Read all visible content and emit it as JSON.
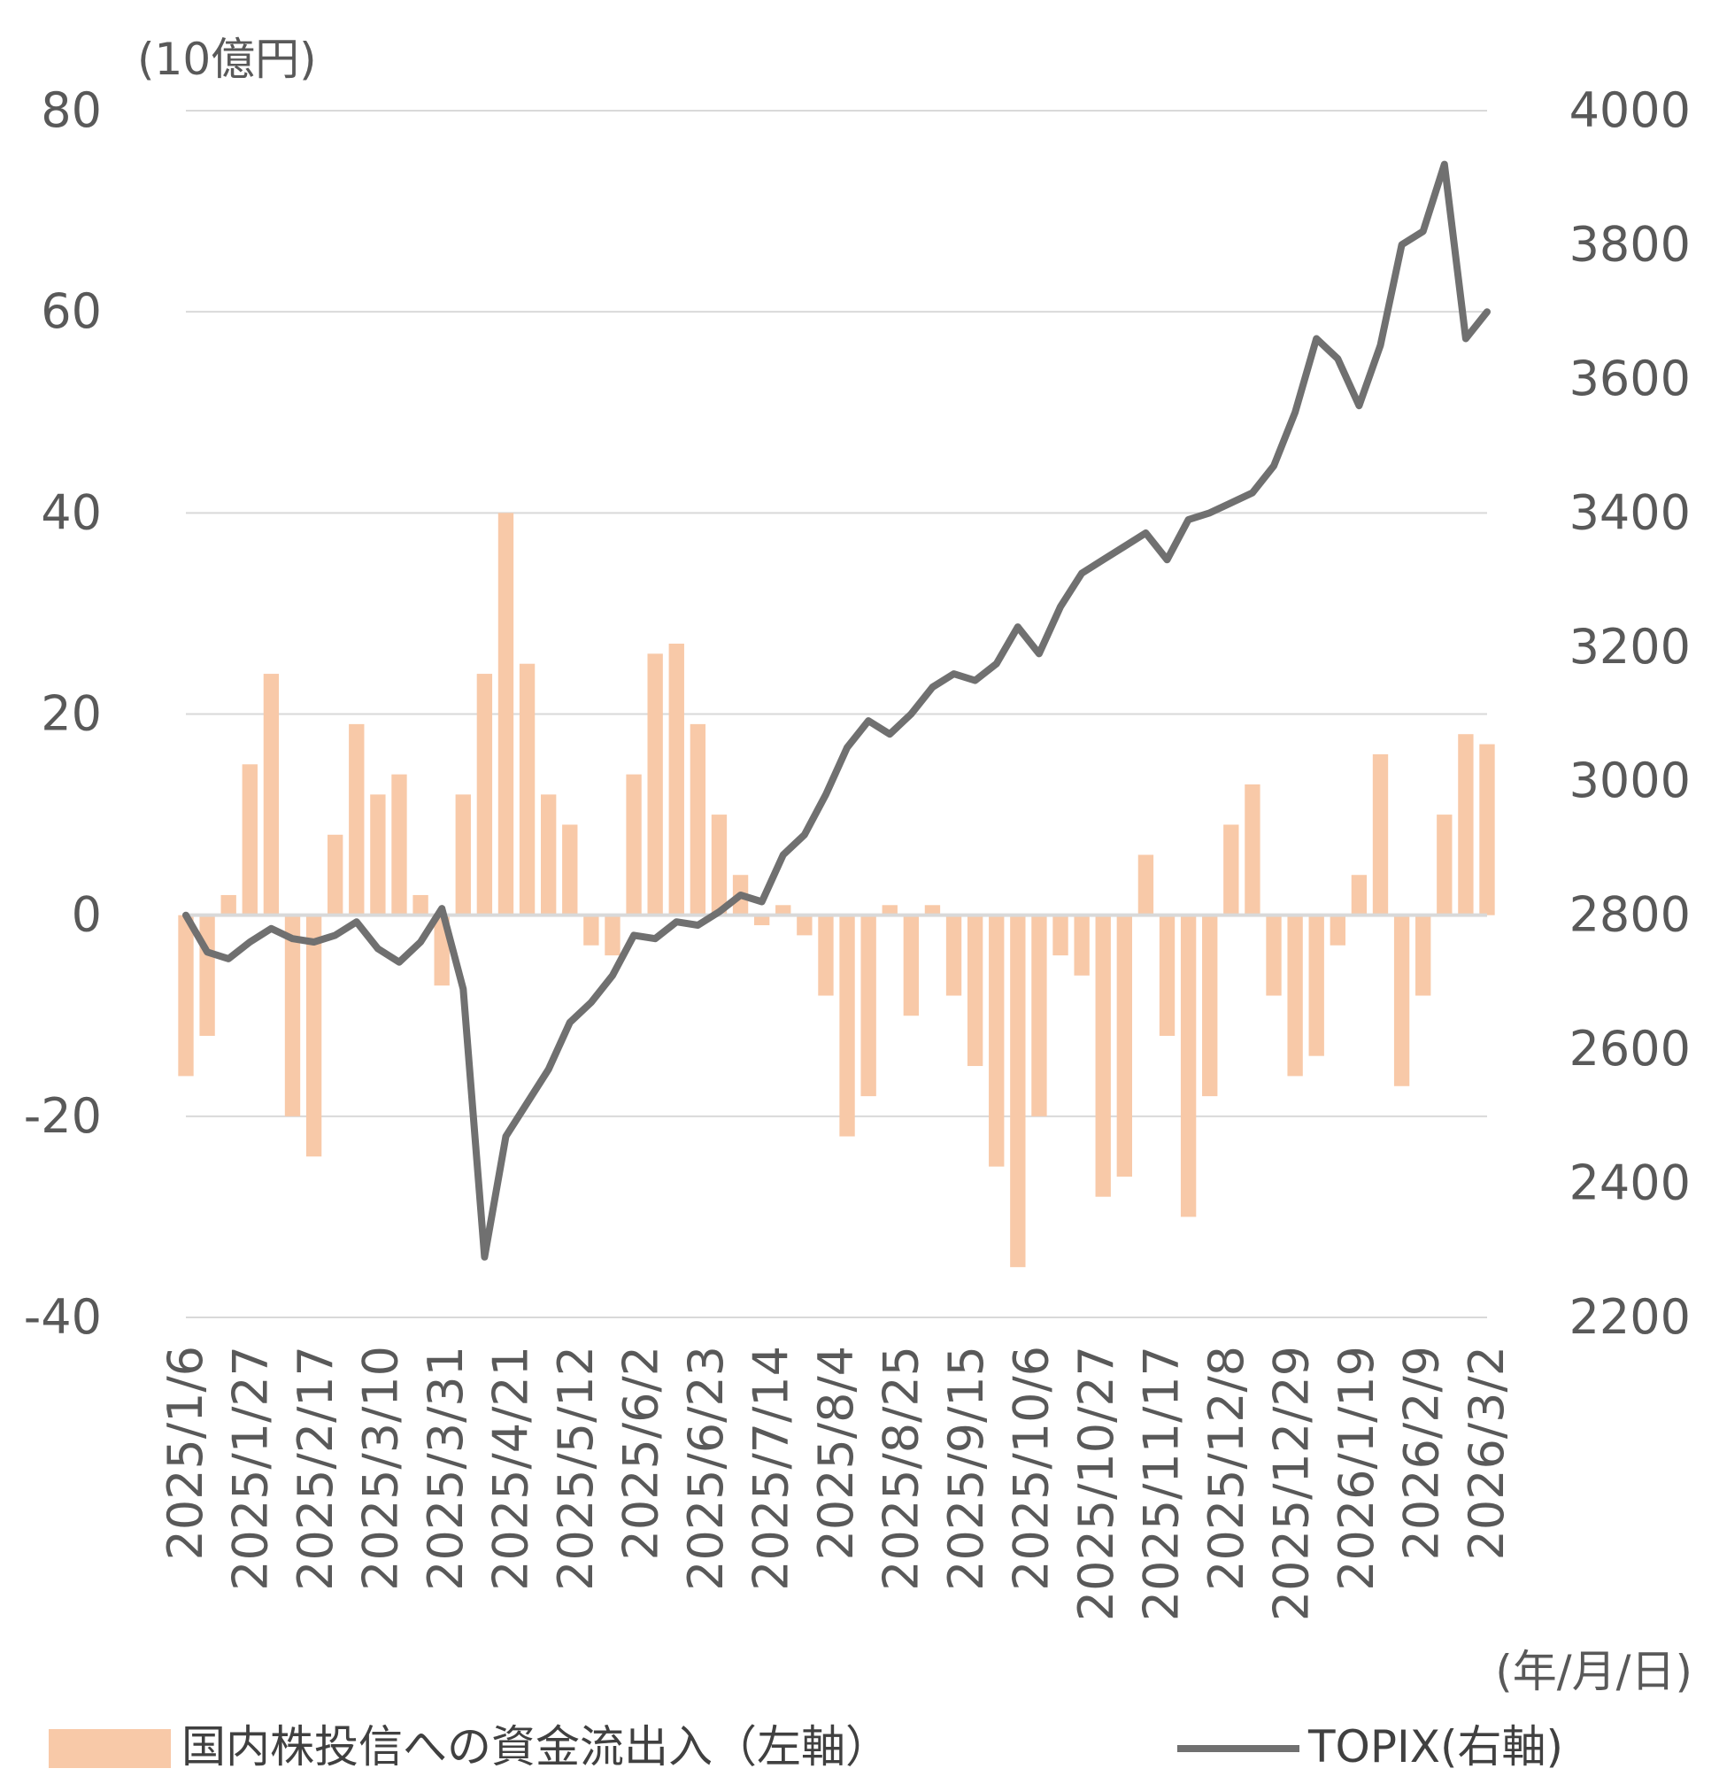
{
  "chart_data": {
    "type": "bar+line",
    "title": "",
    "left_axis": {
      "unit_label": "(10億円)",
      "ylim": [
        -40,
        80
      ],
      "ticks": [
        80,
        60,
        40,
        20,
        0,
        -20,
        -40
      ]
    },
    "right_axis": {
      "ylim": [
        2200,
        4000
      ],
      "ticks": [
        4000,
        3800,
        3600,
        3400,
        3200,
        3000,
        2800,
        2600,
        2400,
        2200
      ]
    },
    "x_axis": {
      "unit_label": "(年/月/日)",
      "date_range": [
        "2025-01-06",
        "2026-03-09"
      ],
      "tick_labels": [
        "2025/1/6",
        "2025/1/27",
        "2025/2/17",
        "2025/3/10",
        "2025/3/31",
        "2025/4/21",
        "2025/5/12",
        "2025/6/2",
        "2025/6/23",
        "2025/7/14",
        "2025/8/4",
        "2025/8/25",
        "2025/9/15",
        "2025/10/6",
        "2025/10/27",
        "2025/11/17",
        "2025/12/8",
        "2025/12/29",
        "2026/1/19",
        "2026/2/9",
        "2026/3/2"
      ]
    },
    "grid": true,
    "legend_placement": "bottom",
    "series": [
      {
        "name": "国内株投信への資金流出入（左軸）",
        "kind": "bar",
        "axis": "left",
        "color": "#f8c9a8",
        "points": [
          [
            "2025-01-06",
            -16
          ],
          [
            "2025-01-13",
            -12
          ],
          [
            "2025-01-20",
            2
          ],
          [
            "2025-01-27",
            15
          ],
          [
            "2025-02-03",
            24
          ],
          [
            "2025-02-10",
            -20
          ],
          [
            "2025-02-17",
            -24
          ],
          [
            "2025-02-24",
            8
          ],
          [
            "2025-03-03",
            19
          ],
          [
            "2025-03-10",
            12
          ],
          [
            "2025-03-17",
            14
          ],
          [
            "2025-03-24",
            2
          ],
          [
            "2025-03-31",
            -7
          ],
          [
            "2025-04-07",
            12
          ],
          [
            "2025-04-14",
            24
          ],
          [
            "2025-04-21",
            40
          ],
          [
            "2025-04-28",
            25
          ],
          [
            "2025-05-05",
            12
          ],
          [
            "2025-05-12",
            9
          ],
          [
            "2025-05-19",
            -3
          ],
          [
            "2025-05-26",
            -4
          ],
          [
            "2025-06-02",
            14
          ],
          [
            "2025-06-09",
            26
          ],
          [
            "2025-06-16",
            27
          ],
          [
            "2025-06-23",
            19
          ],
          [
            "2025-06-30",
            10
          ],
          [
            "2025-07-07",
            4
          ],
          [
            "2025-07-14",
            -1
          ],
          [
            "2025-07-21",
            1
          ],
          [
            "2025-07-28",
            -2
          ],
          [
            "2025-08-04",
            -8
          ],
          [
            "2025-08-11",
            -22
          ],
          [
            "2025-08-18",
            -18
          ],
          [
            "2025-08-25",
            1
          ],
          [
            "2025-09-01",
            -10
          ],
          [
            "2025-09-08",
            1
          ],
          [
            "2025-09-15",
            -8
          ],
          [
            "2025-09-22",
            -15
          ],
          [
            "2025-09-29",
            -25
          ],
          [
            "2025-10-06",
            -35
          ],
          [
            "2025-10-13",
            -20
          ],
          [
            "2025-10-20",
            -4
          ],
          [
            "2025-10-27",
            -6
          ],
          [
            "2025-11-03",
            -28
          ],
          [
            "2025-11-10",
            -26
          ],
          [
            "2025-11-17",
            6
          ],
          [
            "2025-11-24",
            -12
          ],
          [
            "2025-12-01",
            -30
          ],
          [
            "2025-12-08",
            -18
          ],
          [
            "2025-12-15",
            9
          ],
          [
            "2025-12-22",
            13
          ],
          [
            "2025-12-29",
            -8
          ],
          [
            "2026-01-05",
            -16
          ],
          [
            "2026-01-12",
            -14
          ],
          [
            "2026-01-19",
            -3
          ],
          [
            "2026-01-26",
            4
          ],
          [
            "2026-02-02",
            16
          ],
          [
            "2026-02-09",
            -17
          ],
          [
            "2026-02-16",
            -8
          ],
          [
            "2026-02-23",
            10
          ],
          [
            "2026-03-02",
            18
          ],
          [
            "2026-03-09",
            17
          ]
        ]
      },
      {
        "name": "TOPIX(右軸)",
        "kind": "line",
        "axis": "right",
        "color": "#707070",
        "points": [
          [
            "2025-01-06",
            2800
          ],
          [
            "2025-01-13",
            2745
          ],
          [
            "2025-01-20",
            2735
          ],
          [
            "2025-01-27",
            2760
          ],
          [
            "2025-02-03",
            2780
          ],
          [
            "2025-02-10",
            2765
          ],
          [
            "2025-02-17",
            2760
          ],
          [
            "2025-02-24",
            2770
          ],
          [
            "2025-03-03",
            2790
          ],
          [
            "2025-03-10",
            2750
          ],
          [
            "2025-03-17",
            2730
          ],
          [
            "2025-03-24",
            2760
          ],
          [
            "2025-03-31",
            2810
          ],
          [
            "2025-04-07",
            2690
          ],
          [
            "2025-04-14",
            2290
          ],
          [
            "2025-04-21",
            2470
          ],
          [
            "2025-04-28",
            2520
          ],
          [
            "2025-05-05",
            2570
          ],
          [
            "2025-05-12",
            2640
          ],
          [
            "2025-05-19",
            2670
          ],
          [
            "2025-05-26",
            2710
          ],
          [
            "2025-06-02",
            2770
          ],
          [
            "2025-06-09",
            2765
          ],
          [
            "2025-06-16",
            2790
          ],
          [
            "2025-06-23",
            2785
          ],
          [
            "2025-06-30",
            2805
          ],
          [
            "2025-07-07",
            2830
          ],
          [
            "2025-07-14",
            2820
          ],
          [
            "2025-07-21",
            2890
          ],
          [
            "2025-07-28",
            2920
          ],
          [
            "2025-08-04",
            2980
          ],
          [
            "2025-08-11",
            3050
          ],
          [
            "2025-08-18",
            3090
          ],
          [
            "2025-08-25",
            3070
          ],
          [
            "2025-09-01",
            3100
          ],
          [
            "2025-09-08",
            3140
          ],
          [
            "2025-09-15",
            3160
          ],
          [
            "2025-09-22",
            3150
          ],
          [
            "2025-09-29",
            3175
          ],
          [
            "2025-10-06",
            3230
          ],
          [
            "2025-10-13",
            3190
          ],
          [
            "2025-10-20",
            3260
          ],
          [
            "2025-10-27",
            3310
          ],
          [
            "2025-11-03",
            3330
          ],
          [
            "2025-11-10",
            3350
          ],
          [
            "2025-11-17",
            3370
          ],
          [
            "2025-11-24",
            3330
          ],
          [
            "2025-12-01",
            3390
          ],
          [
            "2025-12-08",
            3400
          ],
          [
            "2025-12-15",
            3415
          ],
          [
            "2025-12-22",
            3430
          ],
          [
            "2025-12-29",
            3470
          ],
          [
            "2026-01-05",
            3550
          ],
          [
            "2026-01-12",
            3660
          ],
          [
            "2026-01-19",
            3630
          ],
          [
            "2026-01-26",
            3560
          ],
          [
            "2026-02-02",
            3650
          ],
          [
            "2026-02-09",
            3800
          ],
          [
            "2026-02-16",
            3820
          ],
          [
            "2026-02-23",
            3920
          ],
          [
            "2026-03-02",
            3660
          ],
          [
            "2026-03-09",
            3700
          ]
        ]
      }
    ]
  }
}
